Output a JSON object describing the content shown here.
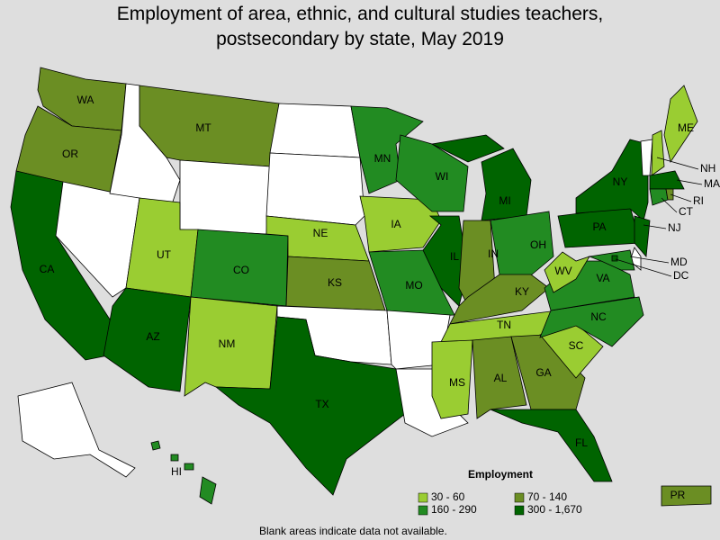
{
  "title": "Employment of area, ethnic, and cultural studies teachers, postsecondary by state, May 2019",
  "states": [
    {
      "label": "WA",
      "color": "#6b8e23"
    },
    {
      "label": "OR",
      "color": "#6b8e23"
    },
    {
      "label": "CA",
      "color": "#006400"
    },
    {
      "label": "MT",
      "color": "#6b8e23"
    },
    {
      "label": "UT",
      "color": "#9acd32"
    },
    {
      "label": "AZ",
      "color": "#006400"
    },
    {
      "label": "CO",
      "color": "#228b22"
    },
    {
      "label": "NM",
      "color": "#9acd32"
    },
    {
      "label": "NE",
      "color": "#9acd32"
    },
    {
      "label": "KS",
      "color": "#6b8e23"
    },
    {
      "label": "TX",
      "color": "#006400"
    },
    {
      "label": "MN",
      "color": "#228b22"
    },
    {
      "label": "IA",
      "color": "#9acd32"
    },
    {
      "label": "MO",
      "color": "#228b22"
    },
    {
      "label": "WI",
      "color": "#228b22"
    },
    {
      "label": "IL",
      "color": "#006400"
    },
    {
      "label": "MI",
      "color": "#006400"
    },
    {
      "label": "IN",
      "color": "#6b8e23"
    },
    {
      "label": "OH",
      "color": "#228b22"
    },
    {
      "label": "KY",
      "color": "#6b8e23"
    },
    {
      "label": "TN",
      "color": "#9acd32"
    },
    {
      "label": "MS",
      "color": "#9acd32"
    },
    {
      "label": "AL",
      "color": "#6b8e23"
    },
    {
      "label": "GA",
      "color": "#6b8e23"
    },
    {
      "label": "FL",
      "color": "#006400"
    },
    {
      "label": "SC",
      "color": "#9acd32"
    },
    {
      "label": "NC",
      "color": "#228b22"
    },
    {
      "label": "VA",
      "color": "#228b22"
    },
    {
      "label": "WV",
      "color": "#9acd32"
    },
    {
      "label": "PA",
      "color": "#006400"
    },
    {
      "label": "NY",
      "color": "#006400"
    },
    {
      "label": "ME",
      "color": "#9acd32"
    },
    {
      "label": "NH",
      "color": "#9acd32"
    },
    {
      "label": "MA",
      "color": "#006400"
    },
    {
      "label": "RI",
      "color": "#6b8e23"
    },
    {
      "label": "CT",
      "color": "#228b22"
    },
    {
      "label": "NJ",
      "color": "#006400"
    },
    {
      "label": "MD",
      "color": "#228b22"
    },
    {
      "label": "DC",
      "color": "#006400"
    },
    {
      "label": "HI",
      "color": "#228b22"
    },
    {
      "label": "PR",
      "color": "#6b8e23"
    }
  ],
  "legend": {
    "title": "Employment",
    "items": [
      {
        "label": "30 - 60",
        "color": "#9acd32"
      },
      {
        "label": "70 - 140",
        "color": "#6b8e23"
      },
      {
        "label": "160 - 290",
        "color": "#228b22"
      },
      {
        "label": "300 - 1,670",
        "color": "#006400"
      }
    ]
  },
  "footnote": "Blank areas indicate data not available."
}
